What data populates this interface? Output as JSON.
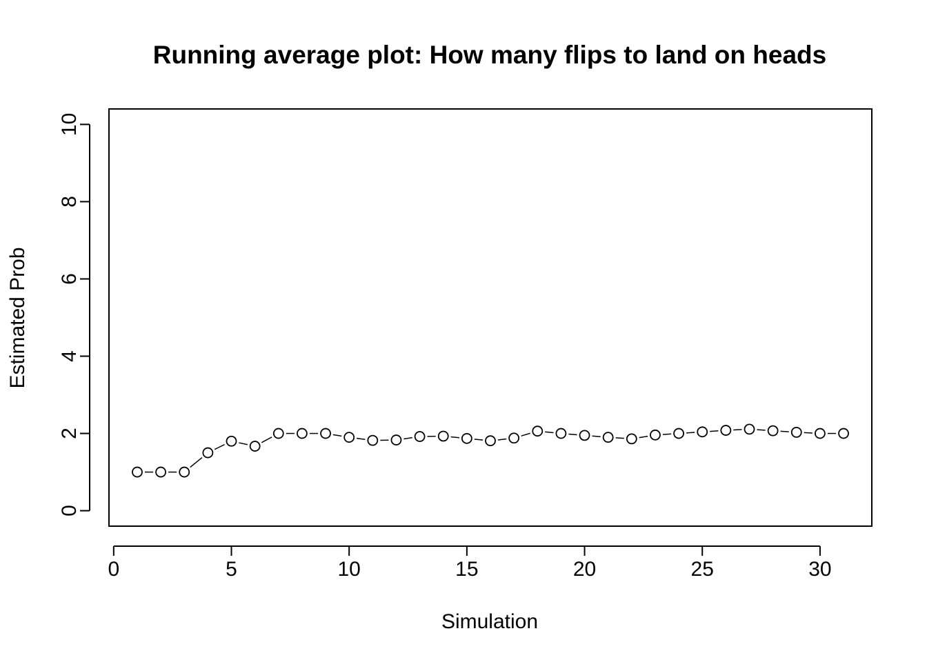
{
  "chart_data": {
    "type": "scatter",
    "title": "Running average plot: How many flips to land on heads",
    "xlabel": "Simulation",
    "ylabel": "Estimated Prob",
    "xlim": [
      -0.2,
      32.2
    ],
    "ylim": [
      -0.4,
      10.4
    ],
    "x_ticks": [
      0,
      5,
      10,
      15,
      20,
      25,
      30
    ],
    "y_ticks": [
      0,
      2,
      4,
      6,
      8,
      10
    ],
    "grid": false,
    "legend": "none",
    "marker": "open-circle",
    "x": [
      1,
      2,
      3,
      4,
      5,
      6,
      7,
      8,
      9,
      10,
      11,
      12,
      13,
      14,
      15,
      16,
      17,
      18,
      19,
      20,
      21,
      22,
      23,
      24,
      25,
      26,
      27,
      28,
      29,
      30,
      31
    ],
    "y": [
      1.0,
      1.0,
      1.0,
      1.5,
      1.8,
      1.67,
      2.0,
      2.0,
      2.0,
      1.9,
      1.82,
      1.83,
      1.92,
      1.93,
      1.87,
      1.81,
      1.88,
      2.06,
      2.0,
      1.95,
      1.9,
      1.86,
      1.96,
      2.0,
      2.04,
      2.08,
      2.11,
      2.07,
      2.03,
      2.0,
      2.0
    ]
  }
}
